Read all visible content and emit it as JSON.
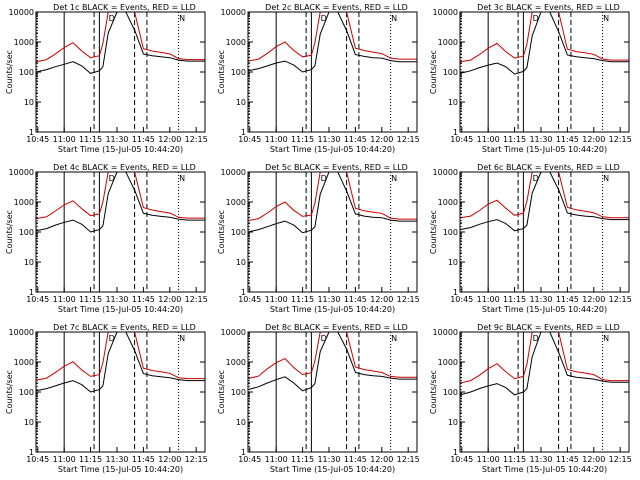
{
  "colors": {
    "events": "#000000",
    "lld": "#cc0000",
    "axis": "#000000"
  },
  "shared": {
    "ylabel": "Counts/sec",
    "xlabel": "Start Time (15-Jul-05 10:44:20)",
    "xticks": [
      "10:45",
      "11:00",
      "11:15",
      "11:30",
      "11:45",
      "12:00",
      "12:15"
    ],
    "yticks": [
      "1",
      "10",
      "100",
      "1000",
      "10000"
    ],
    "ylim": [
      1,
      10000
    ],
    "yscale": "log",
    "vlines_dotted": [
      "10:44:40",
      "12:05"
    ],
    "vlines_solid": [
      "11:00",
      "11:20"
    ],
    "vlines_dashed": [
      "11:17",
      "11:40",
      "11:47"
    ]
  },
  "chart_data": [
    {
      "type": "line",
      "title": "Det 1c BLACK = Events, RED = LLD",
      "markers": [
        "D",
        "N"
      ],
      "x": [
        "10:44",
        "10:50",
        "10:55",
        "11:00",
        "11:05",
        "11:10",
        "11:15",
        "11:20",
        "11:22",
        "11:25",
        "11:30",
        "11:35",
        "11:40",
        "11:45",
        "11:50",
        "11:55",
        "12:00",
        "12:05",
        "12:10",
        "12:15",
        "12:20"
      ],
      "series": [
        {
          "name": "Events",
          "values": [
            100,
            120,
            150,
            180,
            220,
            160,
            90,
            110,
            150,
            2000,
            10000,
            10000,
            2500,
            400,
            350,
            320,
            300,
            250,
            230,
            230,
            230
          ]
        },
        {
          "name": "LLD",
          "values": [
            220,
            260,
            400,
            650,
            950,
            500,
            300,
            350,
            900,
            10000,
            10000,
            10000,
            10000,
            600,
            500,
            450,
            400,
            280,
            260,
            260,
            260
          ]
        }
      ]
    },
    {
      "type": "line",
      "title": "Det 2c BLACK = Events, RED = LLD",
      "markers": [
        "D",
        "N"
      ],
      "x": [
        "10:44",
        "10:50",
        "10:55",
        "11:00",
        "11:05",
        "11:10",
        "11:15",
        "11:20",
        "11:22",
        "11:25",
        "11:30",
        "11:35",
        "11:40",
        "11:45",
        "11:50",
        "11:55",
        "12:00",
        "12:05",
        "12:10",
        "12:15",
        "12:20"
      ],
      "series": [
        {
          "name": "Events",
          "values": [
            110,
            130,
            160,
            200,
            230,
            170,
            100,
            120,
            160,
            1800,
            10000,
            10000,
            2400,
            380,
            330,
            300,
            290,
            240,
            220,
            220,
            220
          ]
        },
        {
          "name": "LLD",
          "values": [
            230,
            270,
            420,
            700,
            1000,
            520,
            320,
            360,
            950,
            10000,
            10000,
            10000,
            10000,
            620,
            520,
            460,
            410,
            290,
            270,
            270,
            270
          ]
        }
      ]
    },
    {
      "type": "line",
      "title": "Det 3c BLACK = Events, RED = LLD",
      "markers": [
        "D",
        "N"
      ],
      "x": [
        "10:44",
        "10:50",
        "10:55",
        "11:00",
        "11:05",
        "11:10",
        "11:15",
        "11:20",
        "11:22",
        "11:25",
        "11:30",
        "11:35",
        "11:40",
        "11:45",
        "11:50",
        "11:55",
        "12:00",
        "12:05",
        "12:10",
        "12:15",
        "12:20"
      ],
      "series": [
        {
          "name": "Events",
          "values": [
            90,
            110,
            140,
            170,
            200,
            150,
            85,
            105,
            140,
            1600,
            10000,
            10000,
            2200,
            370,
            320,
            300,
            280,
            240,
            220,
            220,
            220
          ]
        },
        {
          "name": "LLD",
          "values": [
            220,
            250,
            380,
            620,
            900,
            480,
            290,
            340,
            850,
            10000,
            10000,
            10000,
            10000,
            580,
            480,
            440,
            390,
            270,
            250,
            250,
            250
          ]
        }
      ]
    },
    {
      "type": "line",
      "title": "Det 4c BLACK = Events, RED = LLD",
      "markers": [
        "D",
        "N"
      ],
      "x": [
        "10:44",
        "10:50",
        "10:55",
        "11:00",
        "11:05",
        "11:10",
        "11:15",
        "11:20",
        "11:22",
        "11:25",
        "11:30",
        "11:35",
        "11:40",
        "11:45",
        "11:50",
        "11:55",
        "12:00",
        "12:05",
        "12:10",
        "12:15",
        "12:20"
      ],
      "series": [
        {
          "name": "Events",
          "values": [
            110,
            130,
            170,
            210,
            250,
            180,
            100,
            120,
            160,
            1900,
            10000,
            10000,
            2500,
            420,
            360,
            330,
            310,
            270,
            250,
            250,
            250
          ]
        },
        {
          "name": "LLD",
          "values": [
            280,
            320,
            500,
            800,
            1100,
            600,
            350,
            400,
            1000,
            10000,
            10000,
            10000,
            10000,
            650,
            540,
            480,
            430,
            310,
            290,
            290,
            290
          ]
        }
      ]
    },
    {
      "type": "line",
      "title": "Det 5c BLACK = Events, RED = LLD",
      "markers": [
        "D",
        "N"
      ],
      "x": [
        "10:44",
        "10:50",
        "10:55",
        "11:00",
        "11:05",
        "11:10",
        "11:15",
        "11:20",
        "11:22",
        "11:25",
        "11:30",
        "11:35",
        "11:40",
        "11:45",
        "11:50",
        "11:55",
        "12:00",
        "12:05",
        "12:10",
        "12:15",
        "12:20"
      ],
      "series": [
        {
          "name": "Events",
          "values": [
            100,
            120,
            150,
            190,
            230,
            170,
            95,
            115,
            150,
            1800,
            10000,
            10000,
            2300,
            400,
            340,
            310,
            300,
            250,
            230,
            230,
            230
          ]
        },
        {
          "name": "LLD",
          "values": [
            240,
            280,
            430,
            700,
            1000,
            530,
            330,
            370,
            920,
            10000,
            10000,
            10000,
            10000,
            610,
            510,
            460,
            420,
            290,
            270,
            270,
            270
          ]
        }
      ]
    },
    {
      "type": "line",
      "title": "Det 6c BLACK = Events, RED = LLD",
      "markers": [
        "D",
        "N"
      ],
      "x": [
        "10:44",
        "10:50",
        "10:55",
        "11:00",
        "11:05",
        "11:10",
        "11:15",
        "11:20",
        "11:22",
        "11:25",
        "11:30",
        "11:35",
        "11:40",
        "11:45",
        "11:50",
        "11:55",
        "12:00",
        "12:05",
        "12:10",
        "12:15",
        "12:20"
      ],
      "series": [
        {
          "name": "Events",
          "values": [
            120,
            140,
            180,
            220,
            260,
            190,
            110,
            130,
            170,
            2000,
            10000,
            10000,
            2600,
            430,
            370,
            340,
            320,
            280,
            260,
            260,
            260
          ]
        },
        {
          "name": "LLD",
          "values": [
            300,
            340,
            520,
            850,
            1150,
            620,
            360,
            420,
            1050,
            10000,
            10000,
            10000,
            10000,
            660,
            550,
            490,
            440,
            320,
            300,
            300,
            300
          ]
        }
      ]
    },
    {
      "type": "line",
      "title": "Det 7c BLACK = Events, RED = LLD",
      "markers": [
        "D",
        "N"
      ],
      "x": [
        "10:44",
        "10:50",
        "10:55",
        "11:00",
        "11:05",
        "11:10",
        "11:15",
        "11:20",
        "11:22",
        "11:25",
        "11:30",
        "11:35",
        "11:40",
        "11:45",
        "11:50",
        "11:55",
        "12:00",
        "12:05",
        "12:10",
        "12:15",
        "12:20"
      ],
      "series": [
        {
          "name": "Events",
          "values": [
            110,
            130,
            160,
            200,
            240,
            175,
            100,
            120,
            160,
            1900,
            10000,
            10000,
            2400,
            410,
            350,
            320,
            300,
            260,
            240,
            240,
            240
          ]
        },
        {
          "name": "LLD",
          "values": [
            250,
            290,
            450,
            720,
            1020,
            540,
            330,
            380,
            940,
            10000,
            10000,
            10000,
            10000,
            620,
            520,
            470,
            420,
            300,
            280,
            280,
            280
          ]
        }
      ]
    },
    {
      "type": "line",
      "title": "Det 8c BLACK = Events, RED = LLD",
      "markers": [
        "D",
        "N"
      ],
      "x": [
        "10:44",
        "10:50",
        "10:55",
        "11:00",
        "11:05",
        "11:10",
        "11:15",
        "11:20",
        "11:22",
        "11:25",
        "11:30",
        "11:35",
        "11:40",
        "11:45",
        "11:50",
        "11:55",
        "12:00",
        "12:05",
        "12:10",
        "12:15",
        "12:20"
      ],
      "series": [
        {
          "name": "Events",
          "values": [
            120,
            150,
            200,
            260,
            320,
            200,
            110,
            140,
            190,
            2200,
            10000,
            10000,
            2700,
            450,
            380,
            350,
            330,
            290,
            270,
            270,
            270
          ]
        },
        {
          "name": "LLD",
          "values": [
            280,
            340,
            600,
            950,
            1300,
            650,
            380,
            440,
            1100,
            10000,
            10000,
            10000,
            10000,
            680,
            560,
            500,
            450,
            330,
            310,
            310,
            310
          ]
        }
      ]
    },
    {
      "type": "line",
      "title": "Det 9c BLACK = Events, RED = LLD",
      "markers": [
        "D",
        "N"
      ],
      "x": [
        "10:44",
        "10:50",
        "10:55",
        "11:00",
        "11:05",
        "11:10",
        "11:15",
        "11:20",
        "11:22",
        "11:25",
        "11:30",
        "11:35",
        "11:40",
        "11:45",
        "11:50",
        "11:55",
        "12:00",
        "12:05",
        "12:10",
        "12:15",
        "12:20"
      ],
      "series": [
        {
          "name": "Events",
          "values": [
            80,
            100,
            130,
            160,
            190,
            140,
            80,
            100,
            130,
            1500,
            10000,
            10000,
            2100,
            360,
            310,
            290,
            270,
            230,
            210,
            210,
            210
          ]
        },
        {
          "name": "LLD",
          "values": [
            200,
            240,
            360,
            600,
            880,
            470,
            280,
            330,
            830,
            10000,
            10000,
            10000,
            10000,
            570,
            470,
            430,
            380,
            260,
            240,
            240,
            240
          ]
        }
      ]
    }
  ]
}
